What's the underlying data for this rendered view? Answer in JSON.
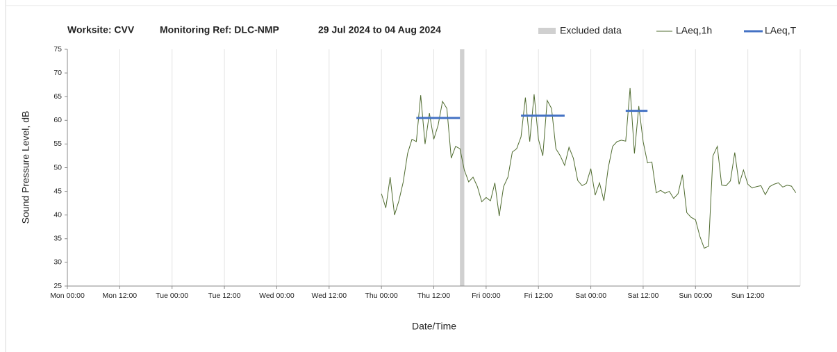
{
  "chart_data": {
    "type": "line",
    "header": [
      "Worksite: CVV",
      "Monitoring Ref: DLC-NMP",
      "29 Jul 2024 to 04 Aug 2024"
    ],
    "xlabel": "Date/Time",
    "ylabel": "Sound Pressure Level, dB",
    "xlim": [
      0,
      168
    ],
    "xticks": [
      {
        "value": 0,
        "label": "Mon 00:00"
      },
      {
        "value": 12,
        "label": "Mon 12:00"
      },
      {
        "value": 24,
        "label": "Tue 00:00"
      },
      {
        "value": 36,
        "label": "Tue 12:00"
      },
      {
        "value": 48,
        "label": "Wed 00:00"
      },
      {
        "value": 60,
        "label": "Wed 12:00"
      },
      {
        "value": 72,
        "label": "Thu 00:00"
      },
      {
        "value": 84,
        "label": "Thu 12:00"
      },
      {
        "value": 96,
        "label": "Fri 00:00"
      },
      {
        "value": 108,
        "label": "Fri 12:00"
      },
      {
        "value": 120,
        "label": "Sat 00:00"
      },
      {
        "value": 132,
        "label": "Sat 12:00"
      },
      {
        "value": 144,
        "label": "Sun 00:00"
      },
      {
        "value": 156,
        "label": "Sun 12:00"
      }
    ],
    "ylim": [
      25,
      75
    ],
    "yticks": [
      25,
      30,
      35,
      40,
      45,
      50,
      55,
      60,
      65,
      70,
      75
    ],
    "grid": "x",
    "excluded": {
      "name": "Excluded data",
      "color": "#d0d0d0",
      "x_start": [
        90
      ],
      "x_end": [
        91
      ]
    },
    "periods": {
      "name": "LAeq,T",
      "color": "#4472c4",
      "x_start": [
        80,
        104,
        128
      ],
      "x_end": [
        90,
        114,
        133
      ],
      "values": [
        60.5,
        61,
        62
      ]
    },
    "series": [
      {
        "name": "LAeq,1h",
        "color": "#4f6b2f",
        "x": [
          72,
          73,
          74,
          75,
          76,
          77,
          78,
          79,
          80,
          81,
          82,
          83,
          84,
          85,
          86,
          87,
          88,
          89,
          90,
          91,
          92,
          93,
          94,
          95,
          96,
          97,
          98,
          99,
          100,
          101,
          102,
          103,
          104,
          105,
          106,
          107,
          108,
          109,
          110,
          111,
          112,
          113,
          114,
          115,
          116,
          117,
          118,
          119,
          120,
          121,
          122,
          123,
          124,
          125,
          126,
          127,
          128,
          129,
          130,
          131,
          132,
          133,
          134,
          135,
          136,
          137,
          138,
          139,
          140,
          141,
          142,
          143,
          144,
          145,
          146,
          147,
          148,
          149,
          150,
          151,
          152,
          153,
          154,
          155,
          156,
          157,
          158,
          159,
          160,
          161,
          162,
          163,
          164,
          165,
          166,
          167
        ],
        "values": [
          44.5,
          41.5,
          48,
          40,
          43,
          47,
          53,
          56,
          55.5,
          65.3,
          55,
          61.5,
          56,
          59,
          64,
          62.5,
          52,
          54.5,
          54,
          49.5,
          47,
          48,
          46,
          42.8,
          43.7,
          43,
          46.8,
          39.8,
          46,
          48,
          53.3,
          54,
          56.5,
          64.8,
          55.5,
          65.5,
          56,
          52.5,
          64.2,
          62.5,
          54,
          52.5,
          50.5,
          54.3,
          52,
          47.3,
          46.2,
          46.7,
          49.8,
          44.2,
          46.8,
          43,
          50,
          54.5,
          55.5,
          55.8,
          55.6,
          66.8,
          53,
          63,
          55.5,
          51,
          51.2,
          44.7,
          45.2,
          44.6,
          45,
          43.5,
          44.5,
          48.5,
          40.5,
          39.5,
          39,
          35.5,
          33,
          33.4,
          52.5,
          54.5,
          46.3,
          46.2,
          47.2,
          53.2,
          46.5,
          49.5,
          46.5,
          45.7,
          46,
          46.2,
          44.3,
          46,
          46.5,
          46.8,
          45.9,
          46.3,
          46.1,
          44.7
        ]
      }
    ]
  }
}
